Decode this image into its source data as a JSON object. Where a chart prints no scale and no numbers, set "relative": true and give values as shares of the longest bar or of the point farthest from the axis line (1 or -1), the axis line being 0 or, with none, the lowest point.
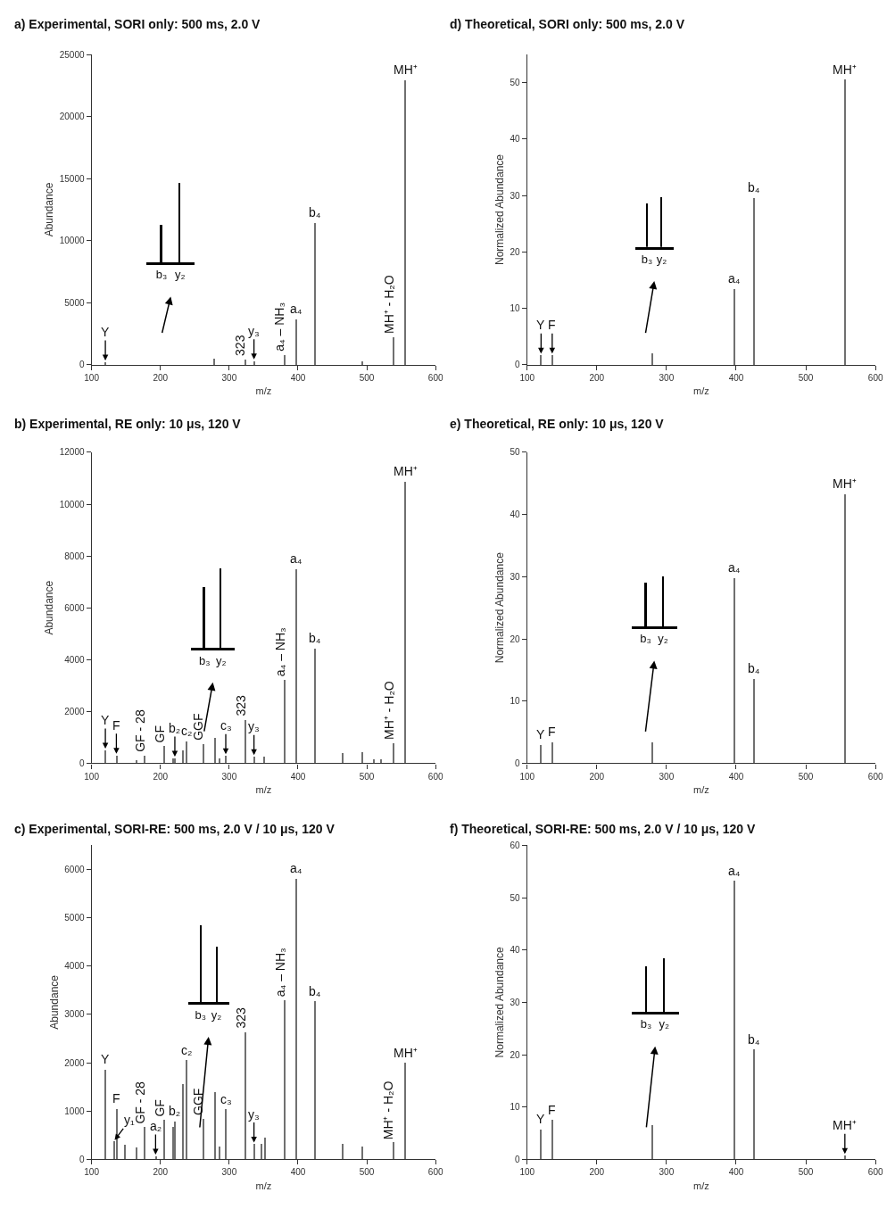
{
  "chart_data": [
    {
      "type": "bar",
      "title": "a) Experimental, SORI only: 500 ms, 2.0 V",
      "xlabel": "m/z",
      "ylabel": "Abundance",
      "color": "#707070",
      "x": [
        120,
        278,
        323,
        336,
        380,
        397,
        425,
        493,
        538,
        556
      ],
      "values": [
        200,
        500,
        400,
        300,
        800,
        3650,
        11400,
        280,
        2250,
        22900
      ],
      "xlim": [
        100,
        600
      ],
      "xticks": [
        100,
        200,
        300,
        400,
        500,
        600
      ],
      "ylim": [
        0,
        25000
      ],
      "yticks": [
        0,
        5000,
        10000,
        15000,
        20000,
        25000
      ],
      "annotations": [
        {
          "text": "Y",
          "x": 120,
          "y": 200
        },
        {
          "text": "323",
          "x": 323,
          "y": 400
        },
        {
          "text": "y₃",
          "x": 336,
          "y": 300
        },
        {
          "text": "a₄ – NH₃",
          "x": 380,
          "y": 800
        },
        {
          "text": "a₄",
          "x": 397,
          "y": 3650
        },
        {
          "text": "b₄",
          "x": 425,
          "y": 11400
        },
        {
          "text": "MH⁺ - H₂O",
          "x": 538,
          "y": 2250
        },
        {
          "text": "MH⁺",
          "x": 556,
          "y": 22900
        }
      ]
    },
    {
      "type": "bar",
      "relative": true,
      "categories": [
        "b₃",
        "y₂"
      ],
      "values": [
        0.47,
        1
      ],
      "color": "#000000"
    },
    {
      "type": "bar",
      "title": "d) Theoretical, SORI only: 500 ms, 2.0 V",
      "xlabel": "m/z",
      "ylabel": "Normalized Abundance",
      "color": "#707070",
      "x": [
        120,
        136,
        279,
        397,
        425,
        556
      ],
      "values": [
        1.7,
        1.7,
        2.0,
        13.4,
        29.5,
        50.5
      ],
      "xlim": [
        100,
        600
      ],
      "xticks": [
        100,
        200,
        300,
        400,
        500,
        600
      ],
      "ylim": [
        0,
        55
      ],
      "yticks": [
        0,
        10,
        20,
        30,
        40,
        50
      ],
      "annotations": [
        {
          "text": "Y",
          "x": 120,
          "y": 1.7
        },
        {
          "text": "F",
          "x": 136,
          "y": 1.7
        },
        {
          "text": "a₄",
          "x": 397,
          "y": 13.4
        },
        {
          "text": "b₄",
          "x": 425,
          "y": 29.5
        },
        {
          "text": "MH⁺",
          "x": 556,
          "y": 50.5
        }
      ]
    },
    {
      "type": "bar",
      "relative": true,
      "categories": [
        "b₃",
        "y₂"
      ],
      "values": [
        0.87,
        1
      ],
      "color": "#000000"
    },
    {
      "type": "bar",
      "title": "b) Experimental, RE only: 10 μs, 120 V",
      "xlabel": "m/z",
      "ylabel": "Abundance",
      "color": "#707070",
      "x": [
        120,
        136,
        165,
        177,
        205,
        218,
        221,
        233,
        238,
        262,
        279,
        285,
        295,
        323,
        336,
        350,
        380,
        397,
        425,
        465,
        493,
        510,
        520,
        538,
        556
      ],
      "values": [
        500,
        300,
        110,
        300,
        660,
        190,
        190,
        510,
        850,
        730,
        990,
        190,
        280,
        1670,
        250,
        250,
        3210,
        7480,
        4410,
        390,
        420,
        140,
        140,
        790,
        10860
      ],
      "xlim": [
        100,
        600
      ],
      "xticks": [
        100,
        200,
        300,
        400,
        500,
        600
      ],
      "ylim": [
        0,
        12000
      ],
      "yticks": [
        0,
        2000,
        4000,
        6000,
        8000,
        10000,
        12000
      ],
      "annotations": [
        {
          "text": "Y",
          "x": 120,
          "y": 500
        },
        {
          "text": "F",
          "x": 136,
          "y": 300
        },
        {
          "text": "GF - 28",
          "x": 177,
          "y": 300
        },
        {
          "text": "GF",
          "x": 205,
          "y": 660
        },
        {
          "text": "b₂",
          "x": 221,
          "y": 190
        },
        {
          "text": "c₂",
          "x": 238,
          "y": 850
        },
        {
          "text": "GGF",
          "x": 262,
          "y": 730
        },
        {
          "text": "c₃",
          "x": 295,
          "y": 280
        },
        {
          "text": "323",
          "x": 323,
          "y": 1670
        },
        {
          "text": "y₃",
          "x": 336,
          "y": 250
        },
        {
          "text": "a₄ – NH₃",
          "x": 380,
          "y": 3210
        },
        {
          "text": "a₄",
          "x": 397,
          "y": 7480
        },
        {
          "text": "b₄",
          "x": 425,
          "y": 4410
        },
        {
          "text": "MH⁺ - H₂O",
          "x": 538,
          "y": 790
        },
        {
          "text": "MH⁺",
          "x": 556,
          "y": 10860
        }
      ]
    },
    {
      "type": "bar",
      "relative": true,
      "categories": [
        "b₃",
        "y₂"
      ],
      "values": [
        0.76,
        1
      ],
      "color": "#000000"
    },
    {
      "type": "bar",
      "title": "e) Theoretical, RE only: 10 μs, 120 V",
      "xlabel": "m/z",
      "ylabel": "Normalized Abundance",
      "color": "#707070",
      "x": [
        120,
        136,
        279,
        397,
        425,
        556
      ],
      "values": [
        3.0,
        3.4,
        3.4,
        29.7,
        13.5,
        43.3
      ],
      "xlim": [
        100,
        600
      ],
      "xticks": [
        100,
        200,
        300,
        400,
        500,
        600
      ],
      "ylim": [
        0,
        50
      ],
      "yticks": [
        0,
        10,
        20,
        30,
        40,
        50
      ],
      "annotations": [
        {
          "text": "Y",
          "x": 120,
          "y": 3.0
        },
        {
          "text": "F",
          "x": 136,
          "y": 3.4
        },
        {
          "text": "a₄",
          "x": 397,
          "y": 29.7
        },
        {
          "text": "b₄",
          "x": 425,
          "y": 13.5
        },
        {
          "text": "MH⁺",
          "x": 556,
          "y": 43.3
        }
      ]
    },
    {
      "type": "bar",
      "relative": true,
      "categories": [
        "b₃",
        "y₂"
      ],
      "values": [
        0.87,
        1
      ],
      "color": "#000000"
    },
    {
      "type": "bar",
      "title": "c) Experimental, SORI-RE: 500 ms, 2.0 V / 10 μs, 120 V",
      "xlabel": "m/z",
      "ylabel": "Abundance",
      "color": "#707070",
      "x": [
        120,
        132,
        136,
        148,
        165,
        177,
        193,
        205,
        218,
        221,
        233,
        238,
        262,
        279,
        285,
        295,
        323,
        336,
        347,
        352,
        380,
        397,
        425,
        465,
        493,
        538,
        556
      ],
      "values": [
        1850,
        370,
        1040,
        300,
        230,
        660,
        60,
        810,
        670,
        780,
        1550,
        2040,
        830,
        1390,
        260,
        1030,
        2630,
        310,
        310,
        450,
        3290,
        5800,
        3260,
        310,
        250,
        340,
        1990
      ],
      "xlim": [
        100,
        600
      ],
      "xticks": [
        100,
        200,
        300,
        400,
        500,
        600
      ],
      "ylim": [
        0,
        6500
      ],
      "yticks": [
        0,
        1000,
        2000,
        3000,
        4000,
        5000,
        6000
      ],
      "annotations": [
        {
          "text": "Y",
          "x": 120,
          "y": 1850
        },
        {
          "text": "F",
          "x": 136,
          "y": 1040
        },
        {
          "text": "y₁",
          "x": 132,
          "y": 370
        },
        {
          "text": "GF - 28",
          "x": 177,
          "y": 660
        },
        {
          "text": "a₂",
          "x": 193,
          "y": 60
        },
        {
          "text": "GF",
          "x": 205,
          "y": 810
        },
        {
          "text": "b₂",
          "x": 221,
          "y": 780
        },
        {
          "text": "c₂",
          "x": 238,
          "y": 2040
        },
        {
          "text": "GGF",
          "x": 262,
          "y": 830
        },
        {
          "text": "c₃",
          "x": 295,
          "y": 1030
        },
        {
          "text": "323",
          "x": 323,
          "y": 2630
        },
        {
          "text": "y₃",
          "x": 336,
          "y": 310
        },
        {
          "text": "a₄ – NH₃",
          "x": 380,
          "y": 3290
        },
        {
          "text": "a₄",
          "x": 397,
          "y": 5800
        },
        {
          "text": "b₄",
          "x": 425,
          "y": 3260
        },
        {
          "text": "MH⁺ - H₂O",
          "x": 538,
          "y": 340
        },
        {
          "text": "MH⁺",
          "x": 556,
          "y": 1990
        }
      ]
    },
    {
      "type": "bar",
      "relative": true,
      "categories": [
        "b₃",
        "y₂"
      ],
      "values": [
        1,
        0.72
      ],
      "color": "#000000"
    },
    {
      "type": "bar",
      "title": "f) Theoretical, SORI-RE: 500 ms, 2.0 V / 10 μs, 120 V",
      "xlabel": "m/z",
      "ylabel": "Normalized Abundance",
      "color": "#707070",
      "x": [
        120,
        136,
        279,
        397,
        425,
        556
      ],
      "values": [
        5.6,
        7.4,
        6.4,
        53.1,
        20.9,
        0.7
      ],
      "xlim": [
        100,
        600
      ],
      "xticks": [
        100,
        200,
        300,
        400,
        500,
        600
      ],
      "ylim": [
        0,
        60
      ],
      "yticks": [
        0,
        10,
        20,
        30,
        40,
        50,
        60
      ],
      "annotations": [
        {
          "text": "Y",
          "x": 120,
          "y": 5.6
        },
        {
          "text": "F",
          "x": 136,
          "y": 7.4
        },
        {
          "text": "a₄",
          "x": 397,
          "y": 53.1
        },
        {
          "text": "b₄",
          "x": 425,
          "y": 20.9
        },
        {
          "text": "MH⁺",
          "x": 556,
          "y": 0.7
        }
      ]
    },
    {
      "type": "bar",
      "relative": true,
      "categories": [
        "b₃",
        "y₂"
      ],
      "values": [
        0.86,
        1
      ],
      "color": "#000000"
    }
  ]
}
